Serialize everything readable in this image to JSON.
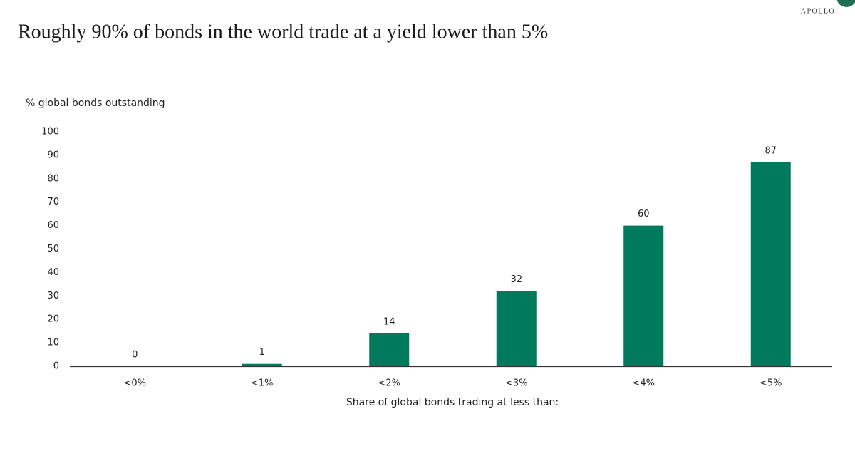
{
  "chart_data": {
    "type": "bar",
    "title": "Roughly 90% of bonds in the world trade at a yield lower than 5%",
    "brand": "APOLLO",
    "y_label": "% global bonds outstanding",
    "x_label": "Share of global bonds trading at less than:",
    "categories": [
      "<0%",
      "<1%",
      "<2%",
      "<3%",
      "<4%",
      "<5%"
    ],
    "values": [
      0,
      1,
      14,
      32,
      60,
      87
    ],
    "color": "#007a5c",
    "ylim": [
      0,
      100
    ],
    "yticks": [
      0,
      10,
      20,
      30,
      40,
      50,
      60,
      70,
      80,
      90,
      100
    ],
    "grid": false
  }
}
